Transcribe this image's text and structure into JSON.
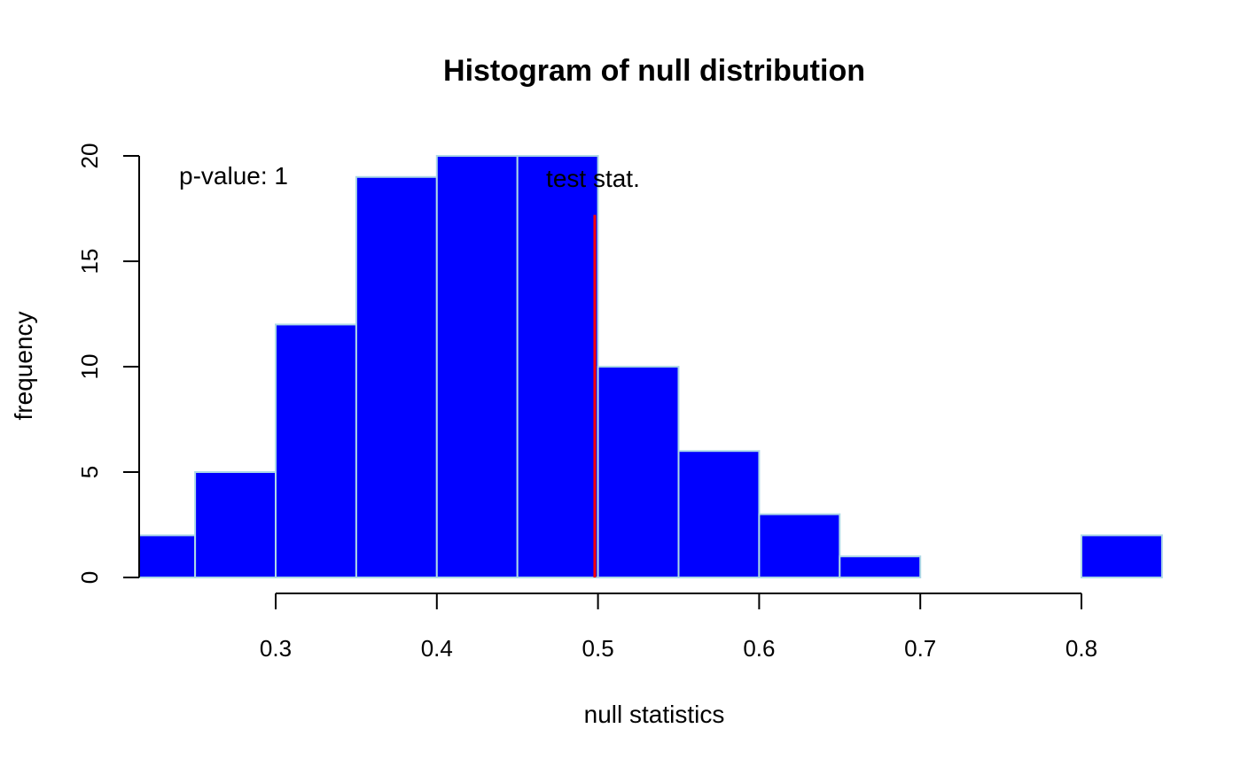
{
  "chart_data": {
    "type": "bar",
    "title": "Histogram of null distribution",
    "xlabel": "null statistics",
    "ylabel": "frequency",
    "bins": [
      {
        "start": 0.2,
        "end": 0.25,
        "count": 2
      },
      {
        "start": 0.25,
        "end": 0.3,
        "count": 5
      },
      {
        "start": 0.3,
        "end": 0.35,
        "count": 12
      },
      {
        "start": 0.35,
        "end": 0.4,
        "count": 19
      },
      {
        "start": 0.4,
        "end": 0.45,
        "count": 20
      },
      {
        "start": 0.45,
        "end": 0.5,
        "count": 20
      },
      {
        "start": 0.5,
        "end": 0.55,
        "count": 10
      },
      {
        "start": 0.55,
        "end": 0.6,
        "count": 6
      },
      {
        "start": 0.6,
        "end": 0.65,
        "count": 3
      },
      {
        "start": 0.65,
        "end": 0.7,
        "count": 1
      },
      {
        "start": 0.7,
        "end": 0.75,
        "count": 0
      },
      {
        "start": 0.75,
        "end": 0.8,
        "count": 0
      },
      {
        "start": 0.8,
        "end": 0.85,
        "count": 2
      }
    ],
    "xlim": [
      0.215,
      0.85
    ],
    "ylim": [
      0,
      20
    ],
    "x_ticks": [
      "0.3",
      "0.4",
      "0.5",
      "0.6",
      "0.7",
      "0.8"
    ],
    "y_ticks": [
      "0",
      "5",
      "10",
      "15",
      "20"
    ],
    "test_stat": {
      "value": 0.498,
      "label": "test stat.",
      "line_top": 17.2
    },
    "p_value_text": "p-value: 1",
    "colors": {
      "bar_fill": "#0000ff",
      "bar_border": "#add8e6",
      "test_line": "#ff0000"
    },
    "grid": false
  }
}
